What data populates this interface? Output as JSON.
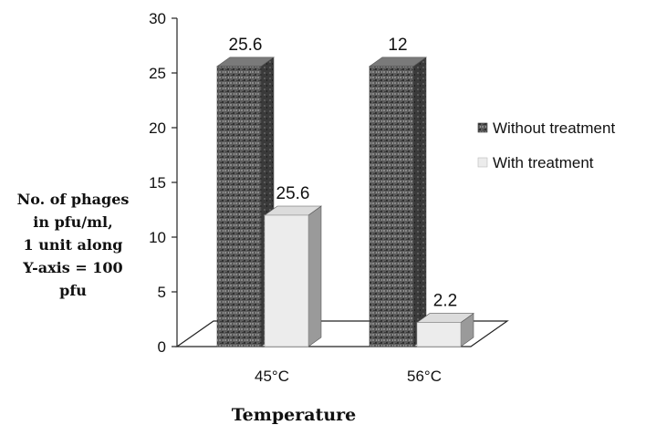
{
  "chart_data": {
    "type": "bar",
    "categories": [
      "45°C",
      "56°C"
    ],
    "series": [
      {
        "name": "Without treatment",
        "values": [
          25.6,
          25.6
        ]
      },
      {
        "name": "With treatment",
        "values": [
          12,
          2.2
        ]
      }
    ],
    "data_labels": [
      "25.6",
      "25.6",
      "12",
      "2.2"
    ],
    "xlabel": "Temperature",
    "ylabel_lines": [
      "No. of phages",
      "in pfu/ml,",
      "1 unit along",
      "Y-axis = 100",
      "pfu"
    ],
    "ylim": [
      0,
      30
    ],
    "yticks": [
      0,
      5,
      10,
      15,
      20,
      25,
      30
    ],
    "grid": false,
    "legend_position": "right",
    "three_d": true,
    "colors": {
      "without_front": "#5a5a5a",
      "without_side": "#3a3a3a",
      "without_top": "#7a7a7a",
      "with_front": "#ececec",
      "with_side": "#9a9a9a",
      "with_top": "#dcdcdc",
      "floor_stroke": "#222222"
    }
  }
}
